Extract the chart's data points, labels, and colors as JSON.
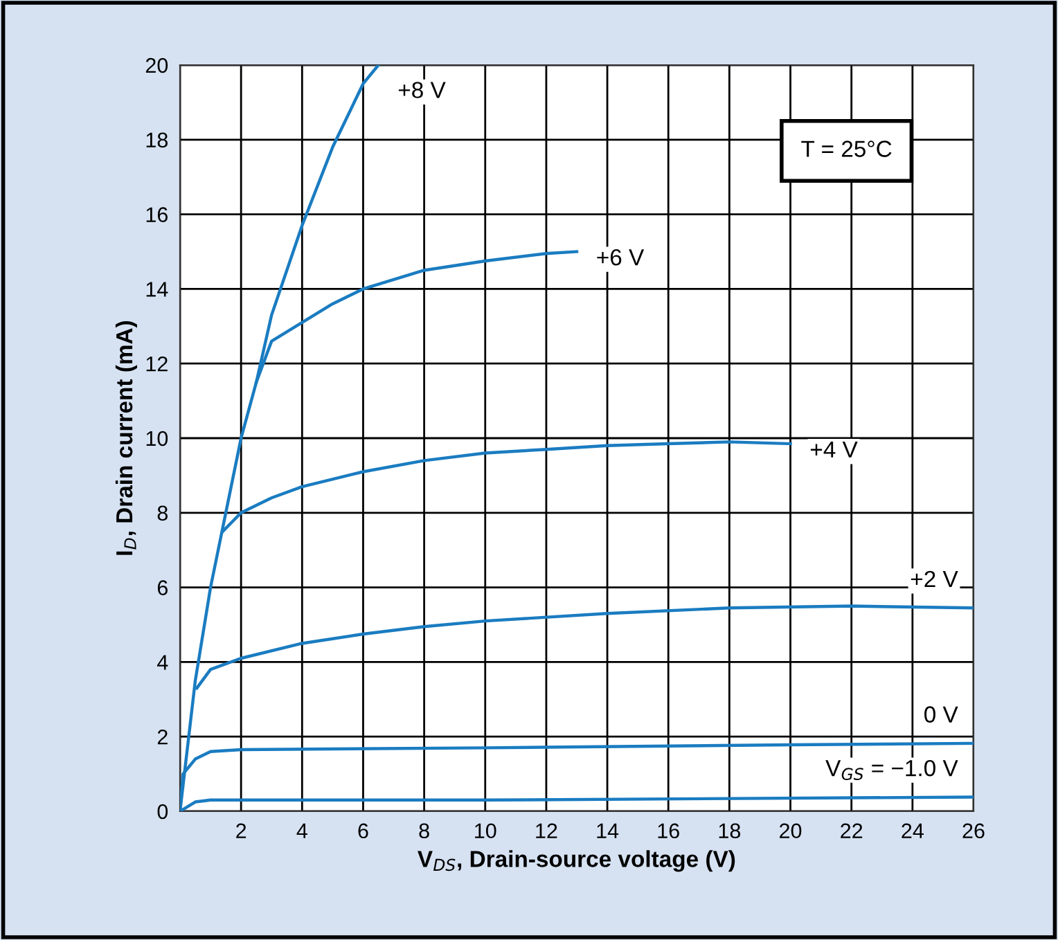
{
  "chart_data": {
    "type": "line",
    "xlabel": "V$_{DS}$, Drain-source voltage (V)",
    "ylabel": "I$_{D}$, Drain current (mA)",
    "xlim": [
      0,
      26
    ],
    "xticks": [
      {
        "value": 0,
        "label": null
      },
      2,
      4,
      6,
      8,
      10,
      12,
      14,
      16,
      18,
      20,
      22,
      24,
      26
    ],
    "ylim": [
      0,
      20
    ],
    "yticks": [
      0,
      2,
      4,
      6,
      8,
      10,
      12,
      14,
      16,
      18,
      20
    ],
    "grid": true,
    "legend": false,
    "marker": "none",
    "line_style": "solid",
    "annotations": [
      "T = 25°C"
    ],
    "series": [
      {
        "name": "+8 V",
        "color": "#1a7cc1",
        "x": [
          0,
          0.5,
          1,
          1.5,
          2,
          2.5,
          3,
          4,
          5,
          6,
          6.5
        ],
        "values": [
          0,
          3.5,
          6,
          8,
          10,
          11.5,
          13.3,
          15.7,
          17.8,
          19.5,
          20
        ]
      },
      {
        "name": "+6 V",
        "color": "#1a7cc1",
        "x": [
          2.5,
          3,
          4,
          5,
          6,
          8,
          10,
          12,
          13
        ],
        "values": [
          11.5,
          12.6,
          13.1,
          13.6,
          14,
          14.5,
          14.75,
          14.95,
          15
        ]
      },
      {
        "name": "+4 V",
        "color": "#1a7cc1",
        "x": [
          1.4,
          2,
          3,
          4,
          6,
          8,
          10,
          12,
          14,
          16,
          18,
          20
        ],
        "values": [
          7.5,
          8,
          8.4,
          8.7,
          9.1,
          9.4,
          9.6,
          9.7,
          9.8,
          9.85,
          9.9,
          9.85
        ]
      },
      {
        "name": "+2 V",
        "color": "#1a7cc1",
        "x": [
          0.55,
          1,
          2,
          4,
          6,
          8,
          10,
          14,
          18,
          22,
          26
        ],
        "values": [
          3.3,
          3.8,
          4.1,
          4.5,
          4.75,
          4.95,
          5.1,
          5.3,
          5.45,
          5.5,
          5.45
        ]
      },
      {
        "name": "0 V",
        "color": "#1a7cc1",
        "x": [
          0,
          0.1,
          0.5,
          1,
          2,
          10,
          20,
          26
        ],
        "values": [
          0,
          1,
          1.4,
          1.6,
          1.65,
          1.7,
          1.78,
          1.82
        ]
      },
      {
        "name": "V$_{GS}$ = −1.0 V",
        "color": "#1a7cc1",
        "x": [
          0,
          0.5,
          1,
          10,
          26
        ],
        "values": [
          0,
          0.25,
          0.3,
          0.3,
          0.38
        ]
      }
    ]
  }
}
